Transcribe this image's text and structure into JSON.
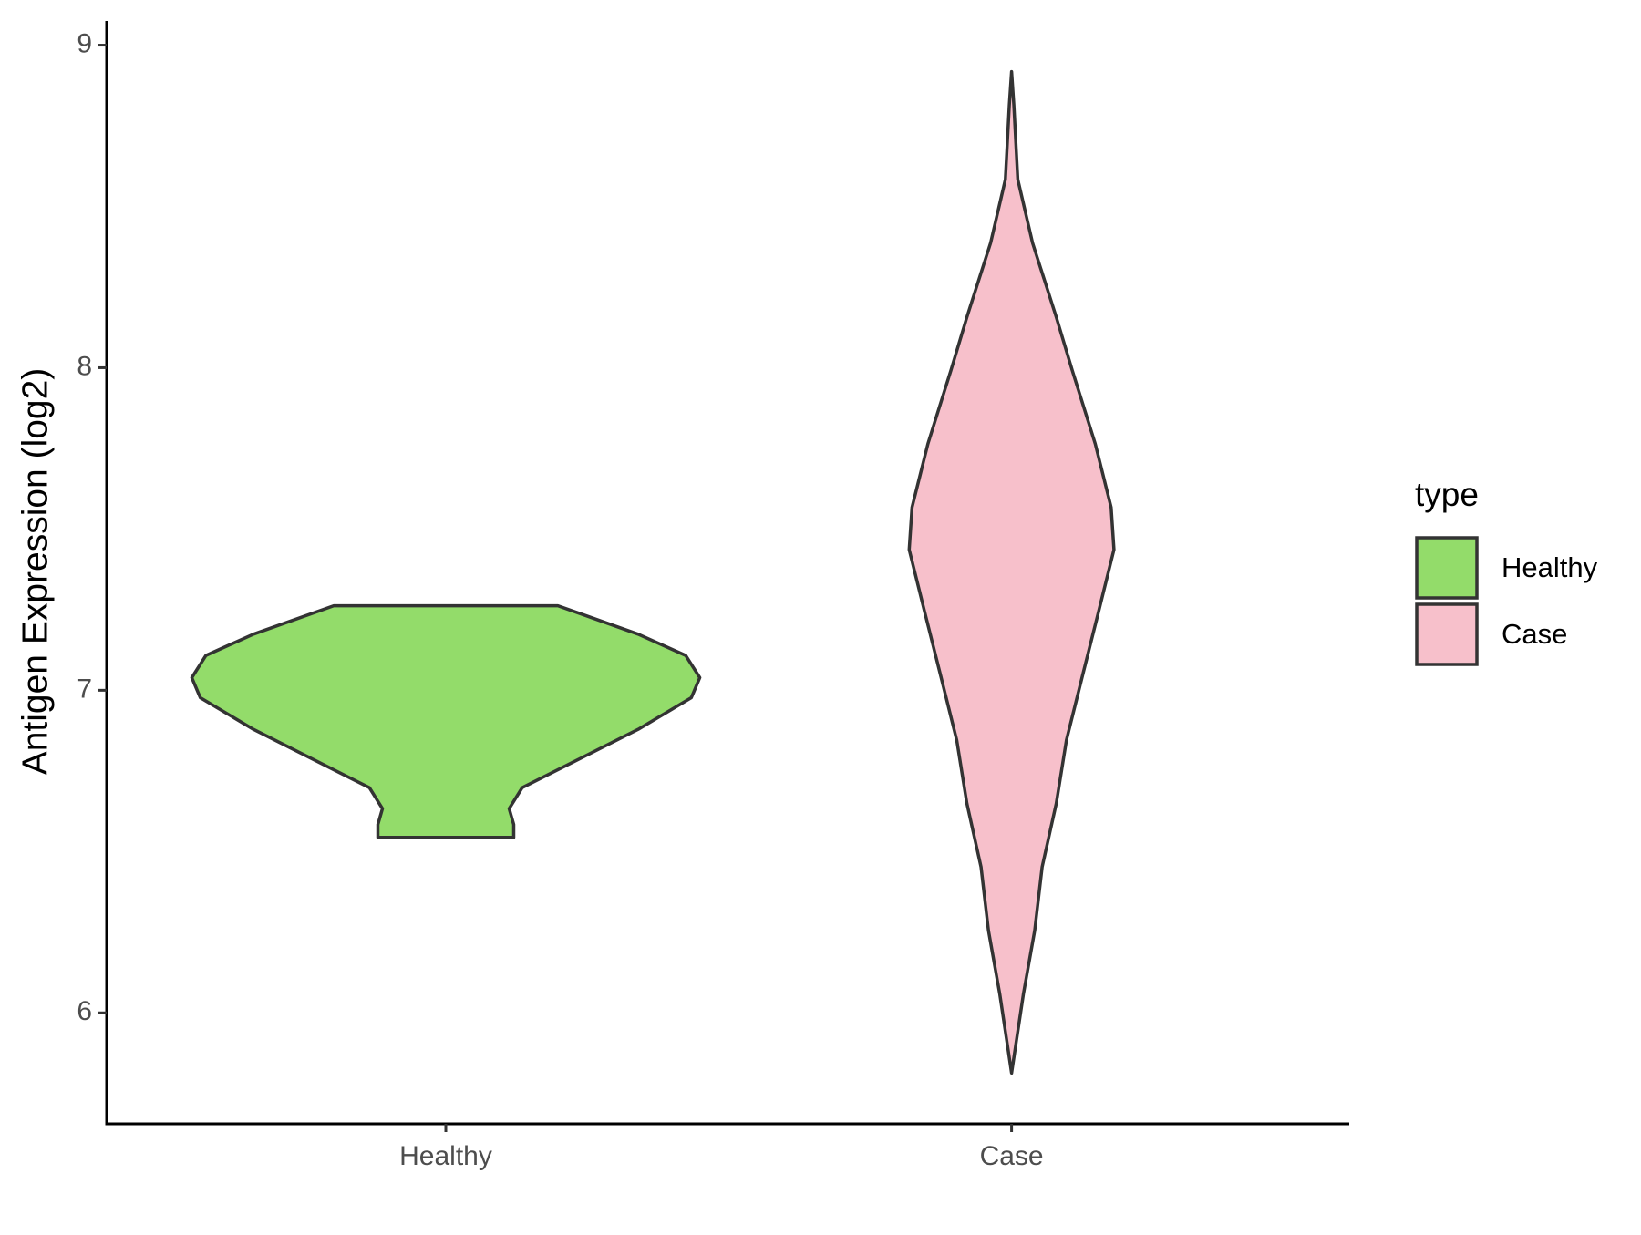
{
  "chart_data": {
    "type": "violin",
    "ylabel": "Antigen Expression (log2)",
    "categories": [
      "Healthy",
      "Case"
    ],
    "legend_title": "type",
    "series": [
      {
        "name": "Healthy",
        "color": "#93dc6a",
        "y": [
          7.262,
          7.174,
          7.108,
          7.039,
          6.977,
          6.879,
          6.78,
          6.698,
          6.633,
          6.584,
          6.544
        ],
        "width": [
          0.198,
          0.34,
          0.424,
          0.449,
          0.434,
          0.34,
          0.228,
          0.135,
          0.112,
          0.12,
          0.12
        ]
      },
      {
        "name": "Case",
        "color": "#f7c0cb",
        "y": [
          8.918,
          8.813,
          8.584,
          8.387,
          8.157,
          7.993,
          7.764,
          7.567,
          7.436,
          7.239,
          7.043,
          6.846,
          6.649,
          6.452,
          6.256,
          6.059,
          5.895,
          5.813
        ],
        "width": [
          0,
          0.004,
          0.011,
          0.037,
          0.079,
          0.107,
          0.148,
          0.176,
          0.181,
          0.153,
          0.125,
          0.097,
          0.079,
          0.054,
          0.041,
          0.021,
          0.007,
          0
        ]
      }
    ],
    "ylim": [
      5.656,
      9.075
    ],
    "yticks": [
      6,
      7,
      8,
      9
    ]
  }
}
